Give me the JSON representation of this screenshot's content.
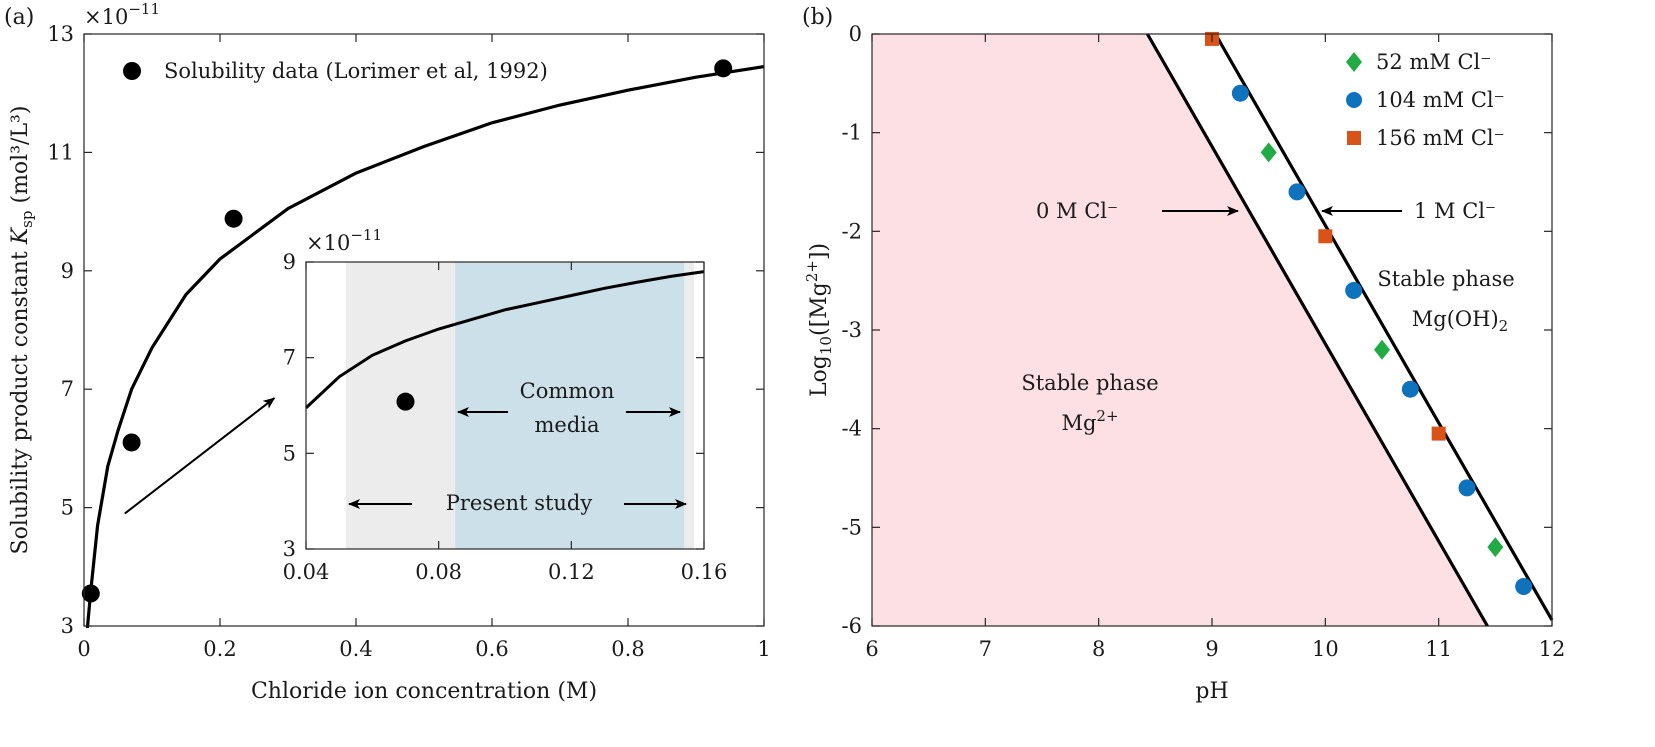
{
  "chart_data": [
    {
      "type": "scatter",
      "panel_label": "(a)",
      "xlabel": "Chloride ion concentration (M)",
      "ylabel_text": "Solubility product constant ",
      "ylabel_symbol": "K",
      "ylabel_sub": "sp",
      "ylabel_units": " (mol³/L³)",
      "y_exponent_label": "×10",
      "y_exponent_value": "−11",
      "xlim": [
        0,
        1
      ],
      "ylim": [
        3,
        13
      ],
      "x_tick_labels": [
        "0",
        "0.2",
        "0.4",
        "0.6",
        "0.8",
        "1"
      ],
      "x_tick_values": [
        0,
        0.2,
        0.4,
        0.6,
        0.8,
        1
      ],
      "y_tick_labels": [
        "3",
        "5",
        "7",
        "9",
        "11",
        "13"
      ],
      "y_tick_values": [
        3,
        5,
        7,
        9,
        11,
        13
      ],
      "grid": false,
      "legend_position": "top-left",
      "series": [
        {
          "name": "Solubility data (Lorimer et al, 1992)",
          "kind": "points",
          "color": "#000000",
          "x": [
            0.01,
            0.07,
            0.22,
            0.94
          ],
          "y": [
            3.55,
            6.1,
            9.88,
            12.42
          ]
        },
        {
          "name": "fit",
          "kind": "line",
          "color": "#000000",
          "x": [
            0.005,
            0.01,
            0.02,
            0.035,
            0.05,
            0.07,
            0.1,
            0.15,
            0.2,
            0.3,
            0.4,
            0.5,
            0.6,
            0.7,
            0.8,
            0.9,
            1.0
          ],
          "y": [
            2.7,
            3.6,
            4.7,
            5.7,
            6.3,
            7.0,
            7.7,
            8.6,
            9.2,
            10.05,
            10.65,
            11.1,
            11.5,
            11.8,
            12.05,
            12.27,
            12.45
          ]
        }
      ],
      "arrow_from_to": [
        [
          0.06,
          4.9
        ],
        [
          0.28,
          6.85
        ]
      ],
      "inset": {
        "xlim": [
          0.04,
          0.16
        ],
        "ylim": [
          3,
          9
        ],
        "x_tick_labels": [
          "0.04",
          "0.08",
          "0.12",
          "0.16"
        ],
        "x_tick_values": [
          0.04,
          0.08,
          0.12,
          0.16
        ],
        "y_tick_labels": [
          "3",
          "5",
          "7",
          "9"
        ],
        "y_tick_values": [
          3,
          5,
          7,
          9
        ],
        "y_exponent_label": "×10",
        "y_exponent_value": "−11",
        "shaded_ranges": [
          {
            "label": "Present study",
            "x": [
              0.052,
              0.157
            ],
            "color": "#ececec"
          },
          {
            "label": "Common media",
            "x": [
              0.085,
              0.154
            ],
            "color": "#cce0ea"
          }
        ],
        "annotations": {
          "common_media_line1": "Common",
          "common_media_line2": "media",
          "present_study": "Present study"
        },
        "curve": {
          "x": [
            0.04,
            0.05,
            0.06,
            0.07,
            0.08,
            0.09,
            0.1,
            0.11,
            0.12,
            0.13,
            0.14,
            0.15,
            0.16
          ],
          "y": [
            5.95,
            6.6,
            7.05,
            7.35,
            7.6,
            7.8,
            8.0,
            8.15,
            8.3,
            8.45,
            8.58,
            8.7,
            8.8
          ]
        },
        "points": {
          "x": [
            0.07
          ],
          "y": [
            6.08
          ]
        }
      }
    },
    {
      "type": "scatter",
      "panel_label": "(b)",
      "xlabel": "pH",
      "ylabel_prefix": "Log",
      "ylabel_sub": "10",
      "ylabel_mid": "([Mg",
      "ylabel_sup": "2+",
      "ylabel_suffix": "])",
      "xlim": [
        6,
        12
      ],
      "ylim": [
        -6,
        0
      ],
      "x_tick_labels": [
        "6",
        "7",
        "8",
        "9",
        "10",
        "11",
        "12"
      ],
      "x_tick_values": [
        6,
        7,
        8,
        9,
        10,
        11,
        12
      ],
      "y_tick_labels": [
        "0",
        "-1",
        "-2",
        "-3",
        "-4",
        "-5",
        "-6"
      ],
      "y_tick_values": [
        0,
        -1,
        -2,
        -3,
        -4,
        -5,
        -6
      ],
      "grid": false,
      "legend_position": "top-right",
      "lines": [
        {
          "name": "0 M Cl⁻",
          "x": [
            8.43,
            11.43
          ],
          "y": [
            0,
            -6
          ],
          "color": "#000000"
        },
        {
          "name": "1 M Cl⁻",
          "x": [
            9.03,
            12.03
          ],
          "y": [
            0,
            -6
          ],
          "color": "#000000"
        }
      ],
      "line_labels": {
        "left": "0 M Cl⁻",
        "right": "1 M Cl⁻"
      },
      "region_labels": {
        "left_line1": "Stable phase",
        "left_line2": "Mg",
        "left_line2_sup": "2+",
        "right_line1": "Stable phase",
        "right_line2": "Mg(OH)",
        "right_line2_sub": "2"
      },
      "region_fill_color": "#fde0e3",
      "series": [
        {
          "name": "52 mM Cl⁻",
          "marker": "diamond",
          "color": "#22aa44",
          "x": [
            9.5,
            10.5,
            11.5
          ],
          "y": [
            -1.2,
            -3.2,
            -5.2
          ]
        },
        {
          "name": "104 mM Cl⁻",
          "marker": "circle",
          "color": "#0f72bd",
          "x": [
            9.25,
            9.75,
            10.25,
            10.75,
            11.25,
            11.75
          ],
          "y": [
            -0.6,
            -1.6,
            -2.6,
            -3.6,
            -4.6,
            -5.6
          ]
        },
        {
          "name": "156 mM Cl⁻",
          "marker": "square",
          "color": "#d95319",
          "x": [
            9.0,
            10.0,
            11.0
          ],
          "y": [
            -0.05,
            -2.05,
            -4.05
          ]
        }
      ]
    }
  ]
}
